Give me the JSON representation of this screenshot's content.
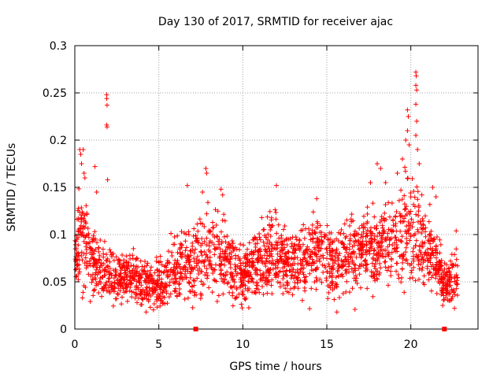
{
  "chart_data": {
    "type": "scatter",
    "title": "Day 130 of 2017, SRMTID for receiver ajac",
    "xlabel": "GPS time / hours",
    "ylabel": "SRMTID / TECUs",
    "xlim": [
      0,
      24
    ],
    "ylim": [
      0,
      0.3
    ],
    "xticks": [
      0,
      5,
      10,
      15,
      20
    ],
    "xtick_labels": [
      "0",
      "5",
      "10",
      "15",
      "20"
    ],
    "yticks": [
      0,
      0.05,
      0.1,
      0.15,
      0.2,
      0.25,
      0.3
    ],
    "ytick_labels": [
      "0",
      "0.05",
      "0.1",
      "0.15",
      "0.2",
      "0.25",
      "0.3"
    ],
    "grid": true,
    "marker": "+",
    "series_color": "#ff0000",
    "zero_markers": [
      7.2,
      22.0
    ],
    "profile": {
      "hours": [
        0.0,
        0.3,
        0.6,
        1.0,
        1.5,
        2.0,
        2.5,
        3.0,
        3.5,
        4.0,
        4.5,
        5.0,
        5.5,
        6.0,
        6.5,
        7.0,
        7.5,
        8.0,
        8.5,
        9.0,
        9.5,
        10.0,
        10.5,
        11.0,
        11.5,
        12.0,
        12.5,
        13.0,
        13.5,
        14.0,
        14.5,
        15.0,
        15.5,
        16.0,
        16.5,
        17.0,
        17.5,
        18.0,
        18.5,
        19.0,
        19.5,
        20.0,
        20.5,
        21.0,
        21.5,
        22.0,
        22.5,
        22.8
      ],
      "median_tecu": [
        0.07,
        0.11,
        0.09,
        0.07,
        0.065,
        0.06,
        0.055,
        0.055,
        0.055,
        0.05,
        0.045,
        0.045,
        0.055,
        0.06,
        0.065,
        0.07,
        0.075,
        0.08,
        0.085,
        0.075,
        0.06,
        0.055,
        0.065,
        0.07,
        0.075,
        0.08,
        0.07,
        0.065,
        0.07,
        0.08,
        0.085,
        0.075,
        0.07,
        0.075,
        0.08,
        0.085,
        0.09,
        0.09,
        0.095,
        0.095,
        0.1,
        0.105,
        0.095,
        0.085,
        0.075,
        0.05,
        0.05,
        0.055
      ],
      "spread_tecu": [
        0.03,
        0.05,
        0.04,
        0.03,
        0.03,
        0.025,
        0.025,
        0.025,
        0.02,
        0.02,
        0.02,
        0.025,
        0.025,
        0.03,
        0.03,
        0.035,
        0.04,
        0.04,
        0.04,
        0.035,
        0.03,
        0.025,
        0.03,
        0.035,
        0.035,
        0.035,
        0.03,
        0.03,
        0.03,
        0.035,
        0.035,
        0.035,
        0.03,
        0.03,
        0.035,
        0.035,
        0.035,
        0.035,
        0.04,
        0.04,
        0.045,
        0.05,
        0.045,
        0.04,
        0.03,
        0.02,
        0.02,
        0.025
      ]
    },
    "outlier_points": [
      {
        "x": 0.3,
        "y": 0.19
      },
      {
        "x": 0.35,
        "y": 0.185
      },
      {
        "x": 0.4,
        "y": 0.175
      },
      {
        "x": 0.5,
        "y": 0.19
      },
      {
        "x": 0.55,
        "y": 0.165
      },
      {
        "x": 0.6,
        "y": 0.16
      },
      {
        "x": 1.2,
        "y": 0.172
      },
      {
        "x": 1.3,
        "y": 0.145
      },
      {
        "x": 1.9,
        "y": 0.248
      },
      {
        "x": 1.9,
        "y": 0.244
      },
      {
        "x": 1.92,
        "y": 0.237
      },
      {
        "x": 1.9,
        "y": 0.216
      },
      {
        "x": 1.92,
        "y": 0.214
      },
      {
        "x": 1.95,
        "y": 0.158
      },
      {
        "x": 6.7,
        "y": 0.152
      },
      {
        "x": 7.6,
        "y": 0.145
      },
      {
        "x": 7.8,
        "y": 0.17
      },
      {
        "x": 7.85,
        "y": 0.165
      },
      {
        "x": 8.7,
        "y": 0.148
      },
      {
        "x": 8.8,
        "y": 0.142
      },
      {
        "x": 12.0,
        "y": 0.152
      },
      {
        "x": 14.4,
        "y": 0.138
      },
      {
        "x": 15.6,
        "y": 0.018
      },
      {
        "x": 17.6,
        "y": 0.155
      },
      {
        "x": 18.0,
        "y": 0.175
      },
      {
        "x": 18.2,
        "y": 0.17
      },
      {
        "x": 18.5,
        "y": 0.155
      },
      {
        "x": 19.2,
        "y": 0.165
      },
      {
        "x": 19.5,
        "y": 0.18
      },
      {
        "x": 19.7,
        "y": 0.2
      },
      {
        "x": 19.8,
        "y": 0.232
      },
      {
        "x": 19.85,
        "y": 0.225
      },
      {
        "x": 19.8,
        "y": 0.21
      },
      {
        "x": 19.9,
        "y": 0.195
      },
      {
        "x": 20.3,
        "y": 0.272
      },
      {
        "x": 20.32,
        "y": 0.268
      },
      {
        "x": 20.3,
        "y": 0.258
      },
      {
        "x": 20.35,
        "y": 0.253
      },
      {
        "x": 20.3,
        "y": 0.238
      },
      {
        "x": 20.35,
        "y": 0.22
      },
      {
        "x": 20.3,
        "y": 0.205
      },
      {
        "x": 20.4,
        "y": 0.19
      },
      {
        "x": 20.5,
        "y": 0.175
      },
      {
        "x": 21.3,
        "y": 0.15
      },
      {
        "x": 21.5,
        "y": 0.14
      },
      {
        "x": 21.9,
        "y": 0.025
      },
      {
        "x": 22.6,
        "y": 0.022
      },
      {
        "x": 22.7,
        "y": 0.104
      }
    ]
  }
}
